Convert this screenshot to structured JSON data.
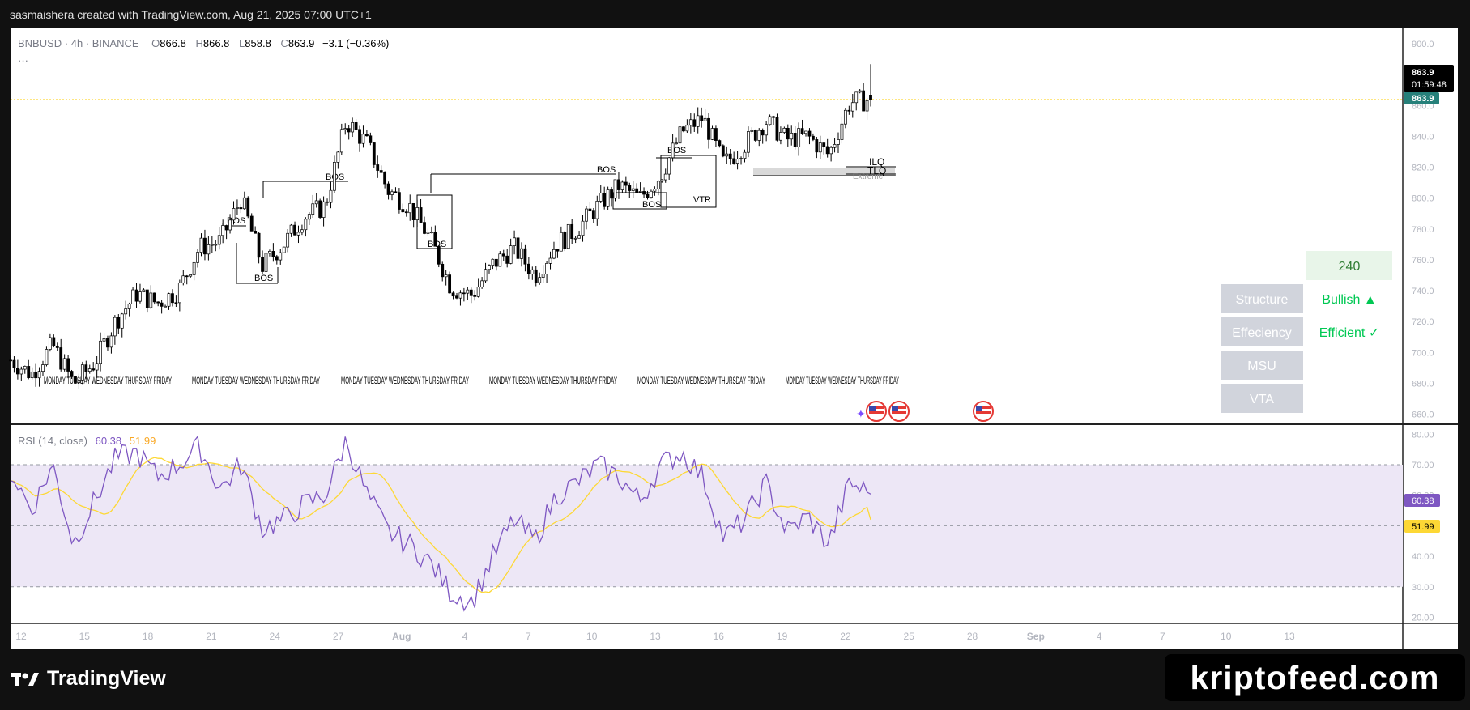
{
  "header": {
    "credit": "sasmaishera created with TradingView.com, Aug 21, 2025 07:00 UTC+1"
  },
  "legend": {
    "symbol": "BNBUSD · 4h · BINANCE",
    "o_label": "O",
    "o": "866.8",
    "h_label": "H",
    "h": "866.8",
    "l_label": "L",
    "l": "858.8",
    "c_label": "C",
    "c": "863.9",
    "change": "−3.1 (−0.36%)",
    "more": "···"
  },
  "price_badge": {
    "price": "863.9",
    "countdown": "01:59:48",
    "last": "863.9"
  },
  "rsi_legend": {
    "label": "RSI (14, close)",
    "rsi": "60.38",
    "ma": "51.99"
  },
  "table": {
    "top_value": "240",
    "rows": [
      {
        "label": "Structure",
        "value": "Bullish ▲"
      },
      {
        "label": "Effeciency",
        "value": "Efficient ✓"
      },
      {
        "label": "MSU",
        "value": ""
      },
      {
        "label": "VTA",
        "value": ""
      }
    ]
  },
  "annotations": {
    "bos": "BOS",
    "vtr": "VTR",
    "ilq": "ILQ",
    "tlq": "TLQ",
    "extreme": "Extreme",
    "day_labels": "MONDAY TUESDAY WEDNESDAY THURSDAY FRIDAY"
  },
  "branding": {
    "logo": "TradingView",
    "watermark": "kriptofeed.com"
  },
  "colors": {
    "up": "#000000",
    "down": "#000000",
    "rsi": "#7e57c2",
    "rsi_ma": "#fdd835",
    "rsi_band": "#ede7f6",
    "bullish": "#00c853",
    "table_label_bg": "#d1d4dc",
    "table_value_bg": "#e8f5e9"
  },
  "chart_data": {
    "type": "candlestick",
    "symbol": "BNBUSD",
    "interval": "4h",
    "exchange": "BINANCE",
    "price_axis": {
      "ticks": [
        660,
        680,
        700,
        720,
        740,
        760,
        780,
        800,
        820,
        840,
        860,
        880,
        900
      ],
      "ylim": [
        654,
        910
      ]
    },
    "x_ticks": [
      "12",
      "15",
      "18",
      "21",
      "24",
      "27",
      "Aug",
      "4",
      "7",
      "10",
      "13",
      "16",
      "19",
      "22",
      "25",
      "28",
      "Sep",
      "4",
      "7",
      "10",
      "13"
    ],
    "close_path": [
      {
        "x": "Jul 12",
        "y": 695
      },
      {
        "x": "Jul 13",
        "y": 686
      },
      {
        "x": "Jul 14",
        "y": 705
      },
      {
        "x": "Jul 15",
        "y": 680
      },
      {
        "x": "Jul 16",
        "y": 693
      },
      {
        "x": "Jul 17",
        "y": 720
      },
      {
        "x": "Jul 18",
        "y": 738
      },
      {
        "x": "Jul 19",
        "y": 732
      },
      {
        "x": "Jul 20",
        "y": 740
      },
      {
        "x": "Jul 21",
        "y": 768
      },
      {
        "x": "Jul 22",
        "y": 772
      },
      {
        "x": "Jul 23",
        "y": 800
      },
      {
        "x": "Jul 24",
        "y": 756
      },
      {
        "x": "Jul 25",
        "y": 770
      },
      {
        "x": "Jul 26",
        "y": 788
      },
      {
        "x": "Jul 27",
        "y": 795
      },
      {
        "x": "Jul 28",
        "y": 850
      },
      {
        "x": "Jul 29",
        "y": 835
      },
      {
        "x": "Jul 30",
        "y": 805
      },
      {
        "x": "Jul 31",
        "y": 795
      },
      {
        "x": "Aug 1",
        "y": 774
      },
      {
        "x": "Aug 2",
        "y": 742
      },
      {
        "x": "Aug 3",
        "y": 737
      },
      {
        "x": "Aug 4",
        "y": 757
      },
      {
        "x": "Aug 5",
        "y": 768
      },
      {
        "x": "Aug 6",
        "y": 750
      },
      {
        "x": "Aug 7",
        "y": 770
      },
      {
        "x": "Aug 8",
        "y": 780
      },
      {
        "x": "Aug 9",
        "y": 795
      },
      {
        "x": "Aug 10",
        "y": 808
      },
      {
        "x": "Aug 11",
        "y": 800
      },
      {
        "x": "Aug 12",
        "y": 815
      },
      {
        "x": "Aug 13",
        "y": 843
      },
      {
        "x": "Aug 14",
        "y": 852
      },
      {
        "x": "Aug 15",
        "y": 822
      },
      {
        "x": "Aug 16",
        "y": 835
      },
      {
        "x": "Aug 17",
        "y": 850
      },
      {
        "x": "Aug 18",
        "y": 838
      },
      {
        "x": "Aug 19",
        "y": 840
      },
      {
        "x": "Aug 20",
        "y": 828
      },
      {
        "x": "Aug 20 20:00",
        "y": 862
      },
      {
        "x": "Aug 21",
        "y": 863.9
      }
    ],
    "last": {
      "open": 866.8,
      "high": 866.8,
      "low": 858.8,
      "close": 863.9,
      "change": -3.1,
      "change_pct": -0.36
    },
    "zones": [
      {
        "label": "Extreme",
        "from": 817,
        "to": 821
      }
    ],
    "rsi": {
      "length": 14,
      "source": "close",
      "axis_ticks": [
        20,
        30,
        40,
        50,
        60,
        70,
        80
      ],
      "ylim": [
        18,
        83
      ],
      "bands": [
        30,
        50,
        70
      ],
      "last_rsi": 60.38,
      "last_ma": 51.99,
      "path": [
        {
          "x": "Jul 12",
          "y": 68
        },
        {
          "x": "Jul 13",
          "y": 55
        },
        {
          "x": "Jul 14",
          "y": 70
        },
        {
          "x": "Jul 15",
          "y": 44
        },
        {
          "x": "Jul 16",
          "y": 58
        },
        {
          "x": "Jul 17",
          "y": 72
        },
        {
          "x": "Jul 18",
          "y": 74
        },
        {
          "x": "Jul 19",
          "y": 66
        },
        {
          "x": "Jul 20",
          "y": 70
        },
        {
          "x": "Jul 21",
          "y": 76
        },
        {
          "x": "Jul 22",
          "y": 62
        },
        {
          "x": "Jul 23",
          "y": 70
        },
        {
          "x": "Jul 24",
          "y": 49
        },
        {
          "x": "Jul 25",
          "y": 52
        },
        {
          "x": "Jul 26",
          "y": 57
        },
        {
          "x": "Jul 27",
          "y": 60
        },
        {
          "x": "Jul 28",
          "y": 78
        },
        {
          "x": "Jul 29",
          "y": 60
        },
        {
          "x": "Jul 30",
          "y": 48
        },
        {
          "x": "Jul 31",
          "y": 44
        },
        {
          "x": "Aug 1",
          "y": 38
        },
        {
          "x": "Aug 2",
          "y": 28
        },
        {
          "x": "Aug 3",
          "y": 25
        },
        {
          "x": "Aug 4",
          "y": 40
        },
        {
          "x": "Aug 5",
          "y": 52
        },
        {
          "x": "Aug 6",
          "y": 45
        },
        {
          "x": "Aug 7",
          "y": 60
        },
        {
          "x": "Aug 8",
          "y": 64
        },
        {
          "x": "Aug 9",
          "y": 70
        },
        {
          "x": "Aug 10",
          "y": 66
        },
        {
          "x": "Aug 11",
          "y": 58
        },
        {
          "x": "Aug 12",
          "y": 70
        },
        {
          "x": "Aug 13",
          "y": 74
        },
        {
          "x": "Aug 14",
          "y": 66
        },
        {
          "x": "Aug 15",
          "y": 46
        },
        {
          "x": "Aug 16",
          "y": 52
        },
        {
          "x": "Aug 17",
          "y": 64
        },
        {
          "x": "Aug 18",
          "y": 48
        },
        {
          "x": "Aug 19",
          "y": 53
        },
        {
          "x": "Aug 20",
          "y": 44
        },
        {
          "x": "Aug 20 20:00",
          "y": 64
        },
        {
          "x": "Aug 21",
          "y": 60.38
        }
      ]
    }
  }
}
